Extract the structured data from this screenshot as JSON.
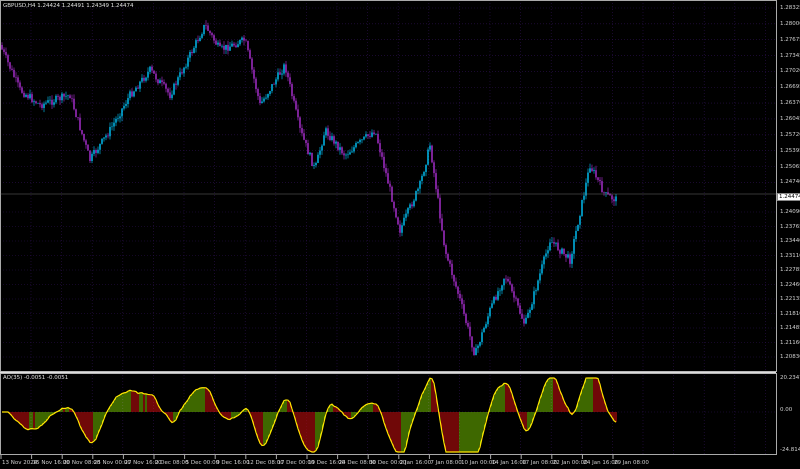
{
  "chart": {
    "symbol_line": "GBPUSD,H4  1.24424 1.24491 1.24349 1.24474",
    "current_price": "1.24474",
    "price_axis": [
      "1.28325",
      "1.28000",
      "1.27675",
      "1.27345",
      "1.27020",
      "1.26695",
      "1.26370",
      "1.26045",
      "1.25720",
      "1.25395",
      "1.25065",
      "1.24740",
      "1.24090",
      "1.23765",
      "1.23440",
      "1.23110",
      "1.22785",
      "1.22460",
      "1.22135",
      "1.21810",
      "1.21485",
      "1.21160",
      "1.20830"
    ],
    "time_axis": [
      "13 Nov 2024",
      "15 Nov 16:00",
      "20 Nov 08:00",
      "25 Nov 00:00",
      "27 Nov 16:00",
      "2 Dec 08:00",
      "5 Dec 00:00",
      "9 Dec 16:00",
      "12 Dec 08:00",
      "17 Dec 00:00",
      "19 Dec 16:00",
      "24 Dec 08:00",
      "30 Dec 00:00",
      "2 Jan 16:00",
      "7 Jan 08:00",
      "10 Jan 00:00",
      "14 Jan 16:00",
      "17 Jan 08:00",
      "22 Jan 00:00",
      "24 Jan 16:00",
      "29 Jan 08:00"
    ],
    "colors": {
      "bull": "#00c8ff",
      "bear": "#b030d8",
      "grid": "#2b0f4e",
      "ao_up": "#7ccf00",
      "ao_down": "#e01010",
      "ao_line": "#ffe600"
    }
  },
  "indicator": {
    "title": "AO(35) -0.0051 -0.0051",
    "axis": [
      "20.2347",
      "0.00",
      "-24.8143"
    ]
  }
}
